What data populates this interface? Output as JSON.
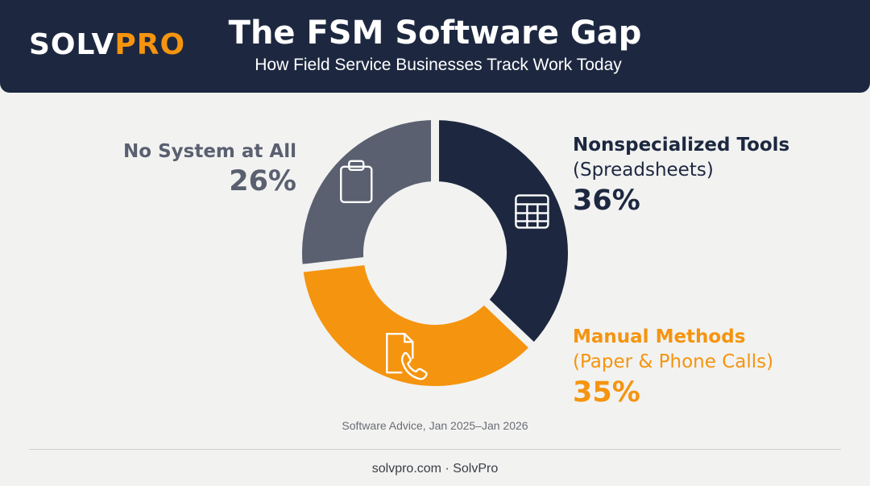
{
  "header": {
    "logo_part1": "SOLV",
    "logo_part2": "PRO",
    "title": "The FSM Software Gap",
    "subtitle": "How Field Service Businesses Track Work Today"
  },
  "chart_data": {
    "type": "pie",
    "style": "donut",
    "slices": [
      {
        "key": "nonspec",
        "label": "Nonspecialized Tools",
        "sublabel": "(Spreadsheets)",
        "value": 36,
        "display": "36%",
        "color": "#1d2840",
        "icon": "spreadsheet-icon"
      },
      {
        "key": "manual",
        "label": "Manual Methods",
        "sublabel": "(Paper & Phone Calls)",
        "value": 35,
        "display": "35%",
        "color": "#f5940f",
        "icon": "document-phone-icon"
      },
      {
        "key": "none",
        "label": "No System at All",
        "sublabel": "",
        "value": 26,
        "display": "26%",
        "color": "#5a6070",
        "icon": "clipboard-icon"
      }
    ]
  },
  "source": "Software Advice, Jan 2025–Jan 2026",
  "footer": "solvpro.com · SolvPro"
}
